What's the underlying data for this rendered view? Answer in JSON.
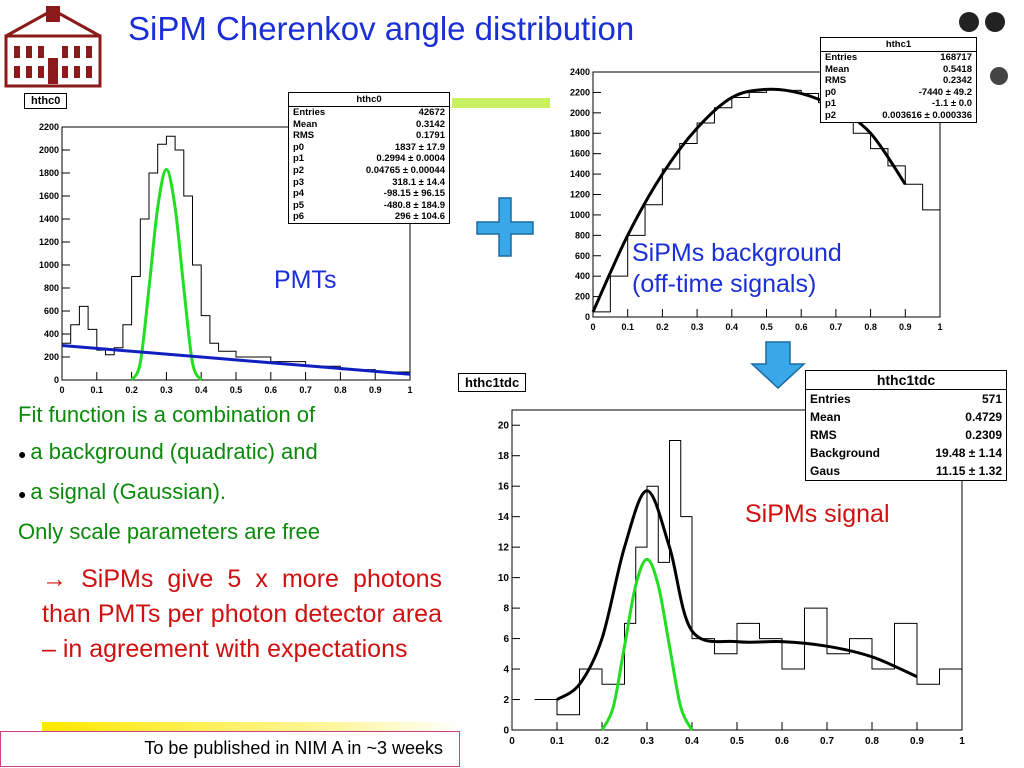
{
  "title": "SiPM Cherenkov angle distribution",
  "labels": {
    "pmts": "PMTs",
    "sipm_bg_line1": "SiPMs background",
    "sipm_bg_line2": "(off-time signals)",
    "sipm_signal": "SiPMs signal"
  },
  "text": {
    "line1": "Fit function is a combination of",
    "bullet1": "a background (quadratic) and",
    "bullet2": "a signal (Gaussian).",
    "line4": "Only scale parameters are free"
  },
  "conclusion": "→ SiPMs give 5 x more photons than PMTs per photon detector area – in agreement with expectations",
  "footer": "To be published in NIM A in ~3 weeks",
  "colors": {
    "title": "#1a2fd6",
    "green_text": "#0a8a0a",
    "red_text": "#d01010",
    "arrow": "#3aa8e8",
    "fit_black": "#000000",
    "fit_green": "#22dd22",
    "fit_blue": "#1020c0"
  },
  "stats": {
    "hthc0": {
      "name": "hthc0",
      "rows": [
        [
          "Entries",
          "42672"
        ],
        [
          "Mean",
          "0.3142"
        ],
        [
          "RMS",
          "0.1791"
        ],
        [
          "p0",
          "1837 ± 17.9"
        ],
        [
          "p1",
          "0.2994 ± 0.0004"
        ],
        [
          "p2",
          "0.04765 ± 0.00044"
        ],
        [
          "p3",
          "318.1 ± 14.4"
        ],
        [
          "p4",
          "-98.15 ± 96.15"
        ],
        [
          "p5",
          "-480.8 ± 184.9"
        ],
        [
          "p6",
          "296 ± 104.6"
        ]
      ]
    },
    "hthc1": {
      "name": "hthc1",
      "rows": [
        [
          "Entries",
          "168717"
        ],
        [
          "Mean",
          "0.5418"
        ],
        [
          "RMS",
          "0.2342"
        ],
        [
          "p0",
          "-7440 ± 49.2"
        ],
        [
          "p1",
          "-1.1 ± 0.0"
        ],
        [
          "p2",
          "0.003616 ± 0.000336"
        ]
      ]
    },
    "hthc1tdc": {
      "name": "hthc1tdc",
      "rows": [
        [
          "Entries",
          "571"
        ],
        [
          "Mean",
          "0.4729"
        ],
        [
          "RMS",
          "0.2309"
        ],
        [
          "Background",
          "19.48 ± 1.14"
        ],
        [
          "Gaus",
          "11.15 ± 1.32"
        ]
      ]
    }
  },
  "chart_data": [
    {
      "type": "line",
      "name": "hthc0",
      "xlim": [
        0,
        1
      ],
      "ylim": [
        0,
        2200
      ],
      "xticks": [
        "0",
        "0.1",
        "0.2",
        "0.3",
        "0.4",
        "0.5",
        "0.6",
        "0.7",
        "0.8",
        "0.9",
        "1"
      ],
      "yticks": [
        "0",
        "200",
        "400",
        "600",
        "800",
        "1000",
        "1200",
        "1400",
        "1600",
        "1800",
        "2000",
        "2200"
      ],
      "series": [
        {
          "x": [
            0,
            0.025,
            0.05,
            0.075,
            0.1,
            0.125,
            0.15,
            0.175,
            0.2,
            0.225,
            0.25,
            0.275,
            0.3,
            0.325,
            0.35,
            0.375,
            0.4,
            0.425,
            0.45,
            0.5,
            0.6,
            0.7,
            0.8,
            0.9,
            1.0
          ],
          "y": [
            320,
            480,
            640,
            440,
            260,
            220,
            280,
            480,
            900,
            1400,
            1800,
            2050,
            2120,
            2000,
            1600,
            1000,
            560,
            320,
            250,
            200,
            160,
            120,
            90,
            70,
            60
          ]
        },
        {
          "x": [
            0.2,
            0.225,
            0.25,
            0.275,
            0.3,
            0.325,
            0.35,
            0.375,
            0.4
          ],
          "y": [
            0,
            150,
            800,
            1500,
            1830,
            1500,
            800,
            150,
            0
          ]
        },
        {
          "x": [
            0,
            0.2,
            0.4,
            0.6,
            0.8,
            1.0
          ],
          "y": [
            300,
            250,
            200,
            150,
            100,
            50
          ]
        }
      ]
    },
    {
      "type": "line",
      "name": "hthc1",
      "xlim": [
        0,
        1
      ],
      "ylim": [
        0,
        2400
      ],
      "xticks": [
        "0",
        "0.1",
        "0.2",
        "0.3",
        "0.4",
        "0.5",
        "0.6",
        "0.7",
        "0.8",
        "0.9",
        "1"
      ],
      "yticks": [
        "0",
        "200",
        "400",
        "600",
        "800",
        "1000",
        "1200",
        "1400",
        "1600",
        "1800",
        "2000",
        "2200",
        "2400"
      ],
      "series": [
        {
          "x": [
            0,
            0.05,
            0.1,
            0.15,
            0.2,
            0.25,
            0.3,
            0.35,
            0.4,
            0.45,
            0.5,
            0.55,
            0.6,
            0.65,
            0.7,
            0.75,
            0.8,
            0.85,
            0.9,
            0.95,
            1.0
          ],
          "y": [
            50,
            400,
            800,
            1100,
            1450,
            1700,
            1900,
            2050,
            2150,
            2200,
            2230,
            2220,
            2190,
            2100,
            1950,
            1800,
            1650,
            1480,
            1300,
            1050,
            700
          ]
        },
        {
          "x": [
            0,
            0.1,
            0.2,
            0.3,
            0.4,
            0.5,
            0.6,
            0.7,
            0.8,
            0.9
          ],
          "y": [
            50,
            800,
            1400,
            1850,
            2150,
            2230,
            2190,
            2050,
            1800,
            1300
          ]
        }
      ]
    },
    {
      "type": "line",
      "name": "hthc1tdc",
      "xlim": [
        0,
        1
      ],
      "ylim": [
        0,
        21
      ],
      "xticks": [
        "0",
        "0.1",
        "0.2",
        "0.3",
        "0.4",
        "0.5",
        "0.6",
        "0.7",
        "0.8",
        "0.9",
        "1"
      ],
      "yticks": [
        "0",
        "2",
        "4",
        "6",
        "8",
        "10",
        "12",
        "14",
        "16",
        "18",
        "20"
      ],
      "series": [
        {
          "x": [
            0.05,
            0.1,
            0.15,
            0.2,
            0.25,
            0.275,
            0.3,
            0.325,
            0.35,
            0.375,
            0.4,
            0.45,
            0.5,
            0.55,
            0.6,
            0.65,
            0.7,
            0.75,
            0.8,
            0.85,
            0.9,
            0.95
          ],
          "y": [
            2,
            1,
            4,
            3,
            7,
            12,
            16,
            11,
            19,
            14,
            6,
            5,
            7,
            6,
            4,
            8,
            5,
            6,
            4,
            7,
            3,
            4
          ]
        },
        {
          "x": [
            0.1,
            0.15,
            0.2,
            0.25,
            0.3,
            0.35,
            0.4,
            0.5,
            0.6,
            0.7,
            0.8,
            0.9
          ],
          "y": [
            2,
            3,
            6,
            12,
            15.7,
            12,
            6.5,
            5.8,
            5.8,
            5.5,
            4.8,
            3.5
          ]
        },
        {
          "x": [
            0.2,
            0.225,
            0.25,
            0.275,
            0.3,
            0.325,
            0.35,
            0.375,
            0.4
          ],
          "y": [
            0,
            1.5,
            5.5,
            9.5,
            11.2,
            9.5,
            5.5,
            1.5,
            0
          ]
        }
      ]
    }
  ]
}
